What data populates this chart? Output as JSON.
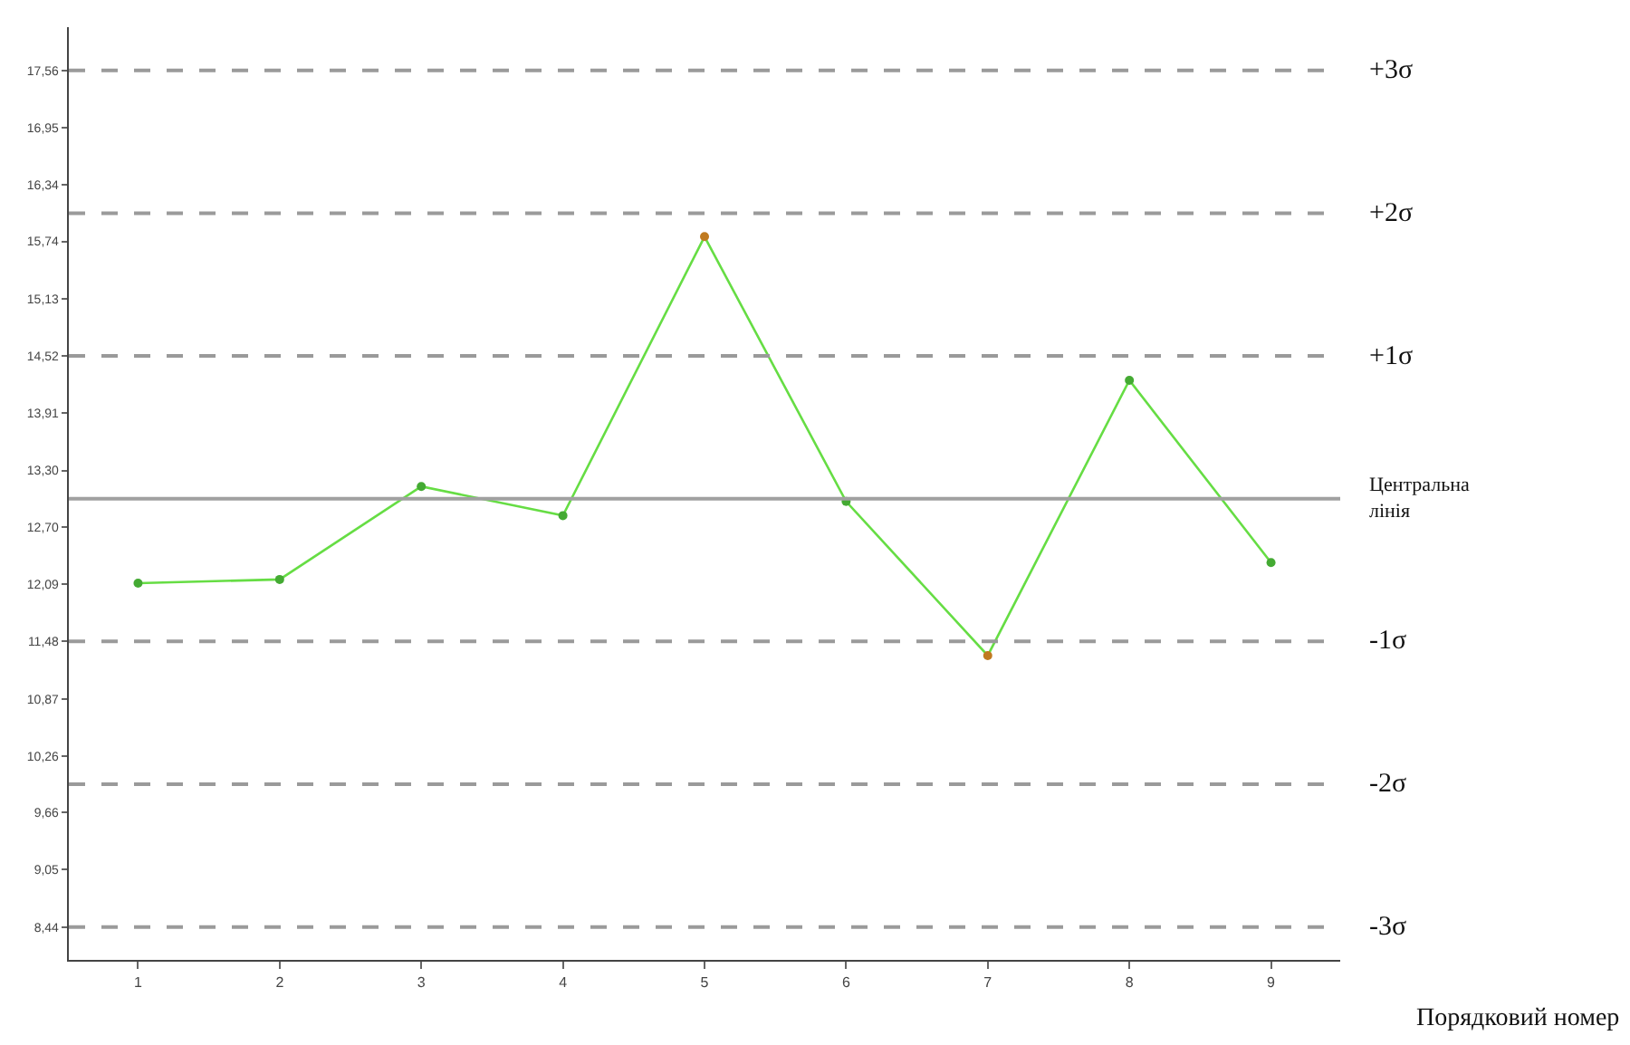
{
  "chart_data": {
    "type": "line",
    "categories": [
      "1",
      "2",
      "3",
      "4",
      "5",
      "6",
      "7",
      "8",
      "9"
    ],
    "series": [
      {
        "color": "#66dd44",
        "values": [
          12.1,
          12.14,
          13.13,
          12.82,
          15.79,
          12.97,
          11.33,
          14.26,
          12.32
        ],
        "colors": [
          "#44aa33",
          "#44aa33",
          "#44aa33",
          "#44aa33",
          "#c07a20",
          "#44aa33",
          "#c07a20",
          "#44aa33",
          "#44aa33"
        ]
      }
    ],
    "xlabel": "Порядковий номер",
    "ylim": [
      8.09,
      18.02
    ],
    "yticks": [
      {
        "value": 17.56,
        "label": "17,56"
      },
      {
        "value": 16.95,
        "label": "16,95"
      },
      {
        "value": 16.34,
        "label": "16,34"
      },
      {
        "value": 15.74,
        "label": "15,74"
      },
      {
        "value": 15.13,
        "label": "15,13"
      },
      {
        "value": 14.52,
        "label": "14,52"
      },
      {
        "value": 13.91,
        "label": "13,91"
      },
      {
        "value": 13.3,
        "label": "13,30"
      },
      {
        "value": 12.7,
        "label": "12,70"
      },
      {
        "value": 12.09,
        "label": "12,09"
      },
      {
        "value": 11.48,
        "label": "11,48"
      },
      {
        "value": 10.87,
        "label": "10,87"
      },
      {
        "value": 10.26,
        "label": "10,26"
      },
      {
        "value": 9.66,
        "label": "9,66"
      },
      {
        "value": 9.05,
        "label": "9,05"
      },
      {
        "value": 8.44,
        "label": "8,44"
      }
    ],
    "ref_lines": [
      {
        "axis": "y",
        "value": 17.56,
        "label": "+3σ",
        "color": "#9a9a9a",
        "line_style": "dashed"
      },
      {
        "axis": "y",
        "value": 16.04,
        "label": "+2σ",
        "color": "#9a9a9a",
        "line_style": "dashed"
      },
      {
        "axis": "y",
        "value": 14.52,
        "label": "+1σ",
        "color": "#9a9a9a",
        "line_style": "dashed"
      },
      {
        "axis": "y",
        "value": 13.0,
        "label": "Центральна лінія",
        "color": "#a0a0a0",
        "line_style": "solid"
      },
      {
        "axis": "y",
        "value": 11.48,
        "label": "-1σ",
        "color": "#9a9a9a",
        "line_style": "dashed"
      },
      {
        "axis": "y",
        "value": 9.96,
        "label": "-2σ",
        "color": "#9a9a9a",
        "line_style": "dashed"
      },
      {
        "axis": "y",
        "value": 8.44,
        "label": "-3σ",
        "color": "#9a9a9a",
        "line_style": "dashed"
      }
    ],
    "marker": "circle",
    "grid": false
  }
}
